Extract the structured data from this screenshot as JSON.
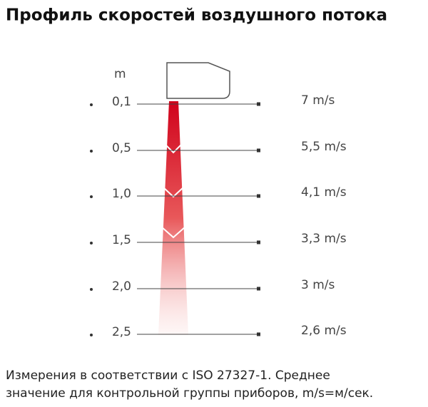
{
  "title": "Профиль скоростей воздушного потока",
  "unit": "m",
  "rows": [
    {
      "distance": "0,1",
      "speed": "7 m/s"
    },
    {
      "distance": "0,5",
      "speed": "5,5 m/s"
    },
    {
      "distance": "1,0",
      "speed": "4,1 m/s"
    },
    {
      "distance": "1,5",
      "speed": "3,3 m/s"
    },
    {
      "distance": "2,0",
      "speed": "3 m/s"
    },
    {
      "distance": "2,5",
      "speed": "2,6 m/s"
    }
  ],
  "note": [
    "Измерения в соответствии с ISO 27327-1.  Среднее",
    "значение для контрольной группы приборов, m/s=м/сек."
  ]
}
